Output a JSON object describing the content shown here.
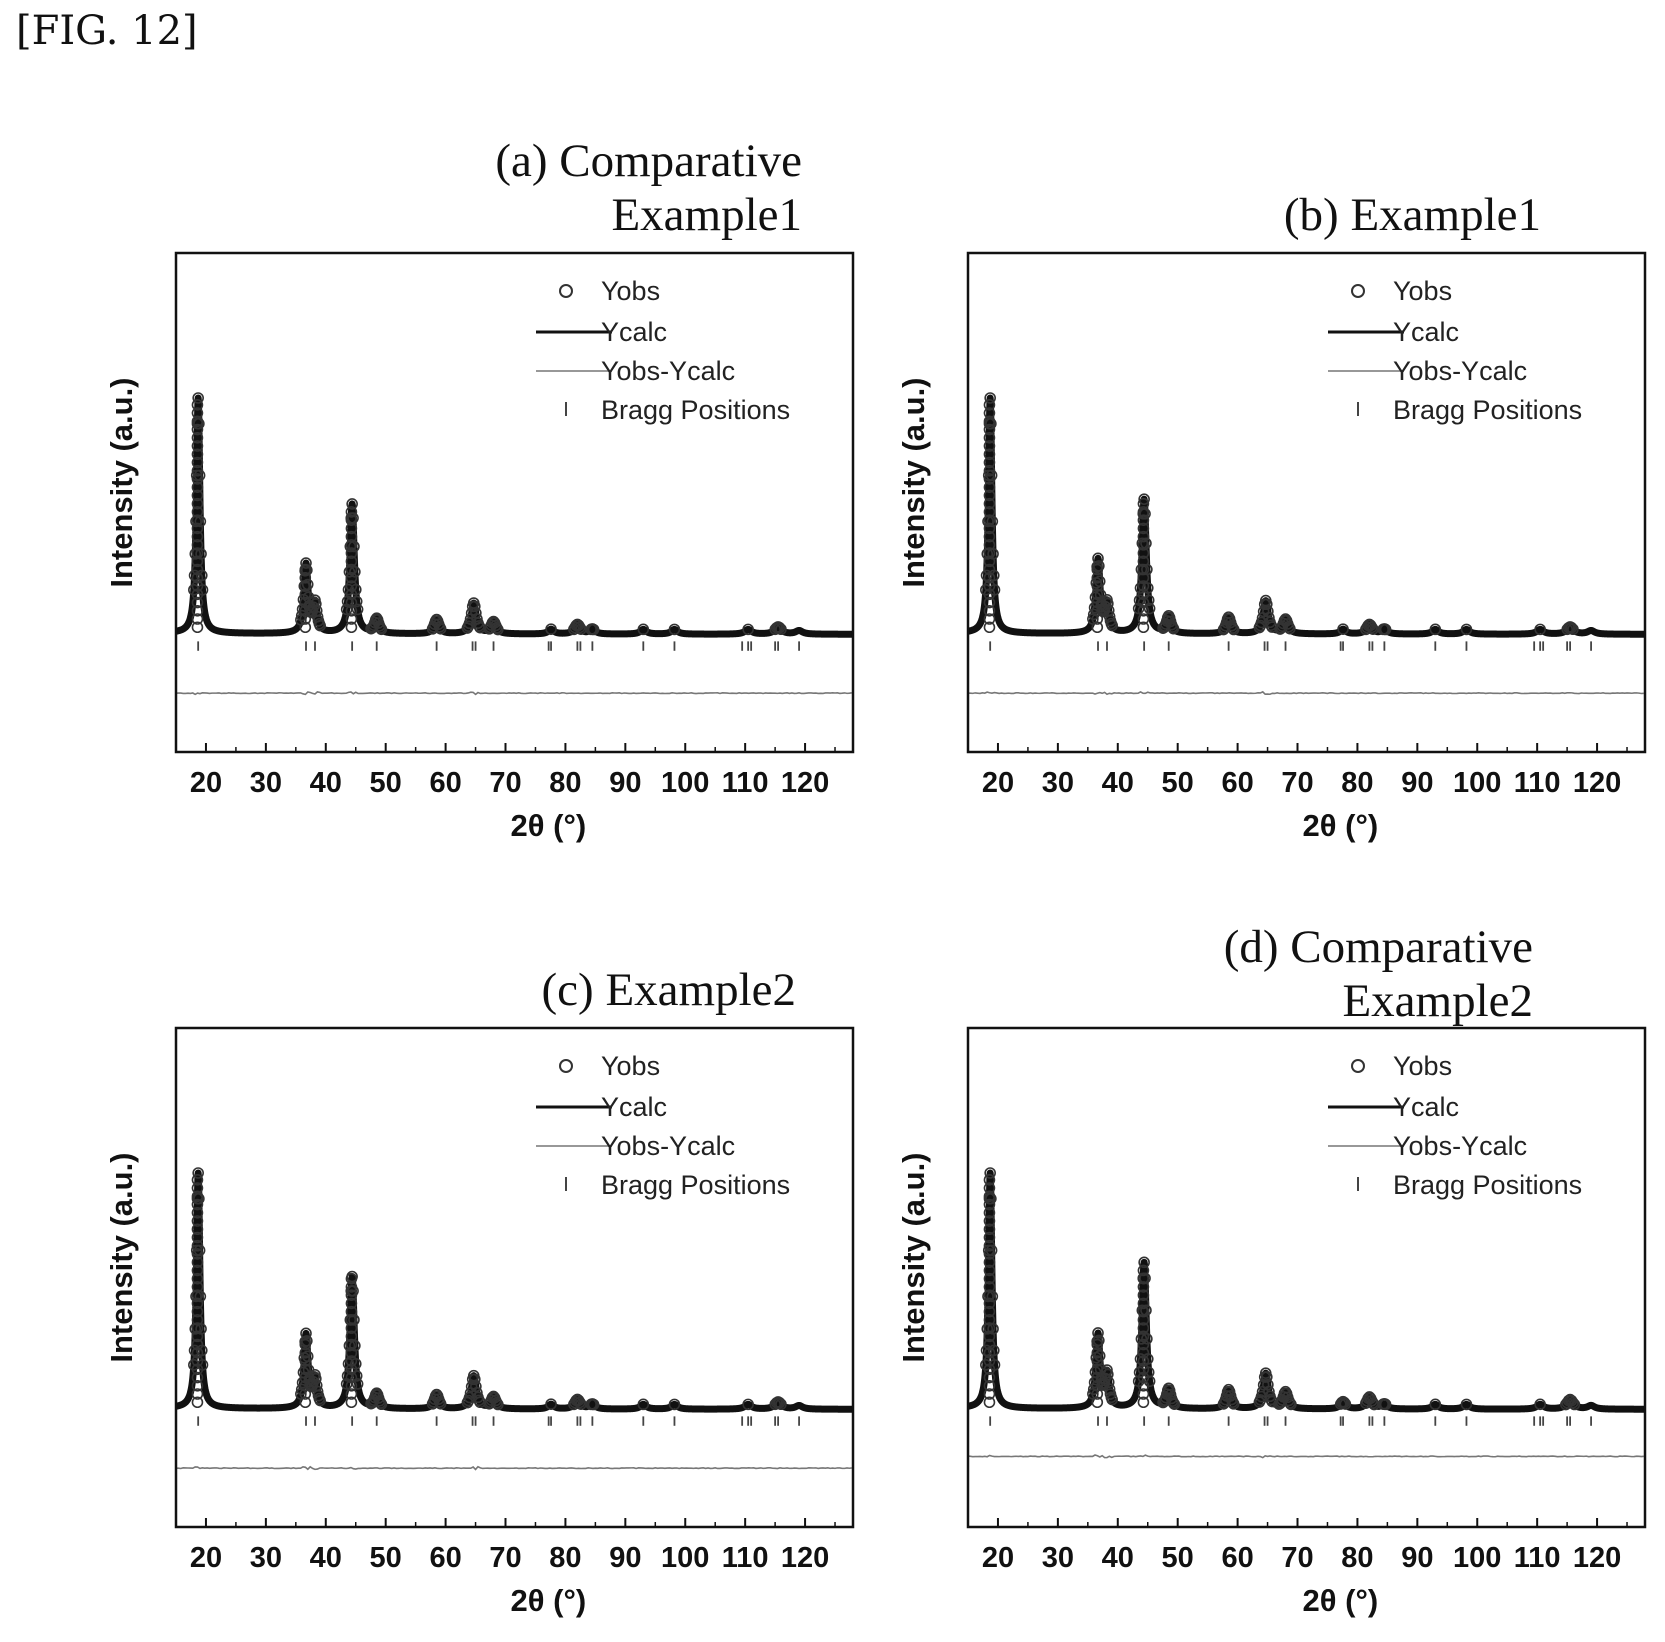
{
  "figure": {
    "label": "[FIG. 12]"
  },
  "legend": {
    "yobs": "Yobs",
    "ycalc": "Ycalc",
    "diff": "Yobs-Ycalc",
    "bragg": "Bragg Positions"
  },
  "colors": {
    "ink": "#111111",
    "yobs_marker": "#333333",
    "difference": "#777777",
    "bragg": "#444444"
  },
  "chart_data": [
    {
      "type": "line",
      "panel": "a",
      "title": "(a) Comparative\nExample1",
      "xlabel": "2θ (°)",
      "ylabel": "Intensity (a.u.)",
      "xlim": [
        15,
        128
      ],
      "xticks": [
        20,
        30,
        40,
        50,
        60,
        70,
        80,
        90,
        100,
        110,
        120
      ],
      "xtick_labels": [
        "20",
        "30",
        "40",
        "50",
        "60",
        "70",
        "80",
        "90",
        "100",
        "110",
        "120"
      ],
      "ylim": [
        -0.5,
        1.62
      ],
      "grid": false,
      "legend_position": "top-right",
      "peaks": [
        {
          "two_theta": 18.7,
          "intensity": 1.0
        },
        {
          "two_theta": 36.7,
          "intensity": 0.29
        },
        {
          "two_theta": 38.2,
          "intensity": 0.12
        },
        {
          "two_theta": 44.4,
          "intensity": 0.55
        },
        {
          "two_theta": 48.5,
          "intensity": 0.06
        },
        {
          "two_theta": 58.5,
          "intensity": 0.06
        },
        {
          "two_theta": 64.7,
          "intensity": 0.13
        },
        {
          "two_theta": 68.0,
          "intensity": 0.05
        },
        {
          "two_theta": 77.6,
          "intensity": 0.02
        },
        {
          "two_theta": 82.0,
          "intensity": 0.04
        },
        {
          "two_theta": 84.5,
          "intensity": 0.02
        },
        {
          "two_theta": 93.0,
          "intensity": 0.02
        },
        {
          "two_theta": 98.2,
          "intensity": 0.02
        },
        {
          "two_theta": 110.5,
          "intensity": 0.02
        },
        {
          "two_theta": 115.5,
          "intensity": 0.03
        },
        {
          "two_theta": 119.0,
          "intensity": 0.015
        }
      ],
      "bragg_positions": [
        18.7,
        36.7,
        38.2,
        44.4,
        48.5,
        58.5,
        64.5,
        65.0,
        68.0,
        77.2,
        77.6,
        82.0,
        82.5,
        84.5,
        93.0,
        98.2,
        109.5,
        110.5,
        111.0,
        115.0,
        115.5,
        119.0
      ],
      "difference_offset": -0.25
    },
    {
      "type": "line",
      "panel": "b",
      "title": "(b) Example1",
      "xlabel": "2θ (°)",
      "ylabel": "Intensity (a.u.)",
      "xlim": [
        15,
        128
      ],
      "xticks": [
        20,
        30,
        40,
        50,
        60,
        70,
        80,
        90,
        100,
        110,
        120
      ],
      "xtick_labels": [
        "20",
        "30",
        "40",
        "50",
        "60",
        "70",
        "80",
        "90",
        "100",
        "110",
        "120"
      ],
      "ylim": [
        -0.5,
        1.62
      ],
      "grid": false,
      "legend_position": "top-right",
      "peaks": [
        {
          "two_theta": 18.7,
          "intensity": 1.0
        },
        {
          "two_theta": 36.7,
          "intensity": 0.31
        },
        {
          "two_theta": 38.2,
          "intensity": 0.12
        },
        {
          "two_theta": 44.4,
          "intensity": 0.57
        },
        {
          "two_theta": 48.5,
          "intensity": 0.07
        },
        {
          "two_theta": 58.5,
          "intensity": 0.07
        },
        {
          "two_theta": 64.7,
          "intensity": 0.14
        },
        {
          "two_theta": 68.0,
          "intensity": 0.06
        },
        {
          "two_theta": 77.6,
          "intensity": 0.02
        },
        {
          "two_theta": 82.0,
          "intensity": 0.04
        },
        {
          "two_theta": 84.5,
          "intensity": 0.02
        },
        {
          "two_theta": 93.0,
          "intensity": 0.02
        },
        {
          "two_theta": 98.2,
          "intensity": 0.02
        },
        {
          "two_theta": 110.5,
          "intensity": 0.02
        },
        {
          "two_theta": 115.5,
          "intensity": 0.03
        },
        {
          "two_theta": 119.0,
          "intensity": 0.015
        }
      ],
      "bragg_positions": [
        18.7,
        36.7,
        38.2,
        44.4,
        48.5,
        58.5,
        64.5,
        65.0,
        68.0,
        77.2,
        77.6,
        82.0,
        82.5,
        84.5,
        93.0,
        98.2,
        109.5,
        110.5,
        111.0,
        115.0,
        115.5,
        119.0
      ],
      "difference_offset": -0.25
    },
    {
      "type": "line",
      "panel": "c",
      "title": "(c) Example2",
      "xlabel": "2θ (°)",
      "ylabel": "Intensity (a.u.)",
      "xlim": [
        15,
        128
      ],
      "xticks": [
        20,
        30,
        40,
        50,
        60,
        70,
        80,
        90,
        100,
        110,
        120
      ],
      "xtick_labels": [
        "20",
        "30",
        "40",
        "50",
        "60",
        "70",
        "80",
        "90",
        "100",
        "110",
        "120"
      ],
      "ylim": [
        -0.5,
        1.62
      ],
      "grid": false,
      "legend_position": "top-right",
      "peaks": [
        {
          "two_theta": 18.7,
          "intensity": 1.0
        },
        {
          "two_theta": 36.7,
          "intensity": 0.31
        },
        {
          "two_theta": 38.2,
          "intensity": 0.12
        },
        {
          "two_theta": 44.4,
          "intensity": 0.56
        },
        {
          "two_theta": 48.5,
          "intensity": 0.06
        },
        {
          "two_theta": 58.5,
          "intensity": 0.06
        },
        {
          "two_theta": 64.7,
          "intensity": 0.14
        },
        {
          "two_theta": 68.0,
          "intensity": 0.05
        },
        {
          "two_theta": 77.6,
          "intensity": 0.02
        },
        {
          "two_theta": 82.0,
          "intensity": 0.04
        },
        {
          "two_theta": 84.5,
          "intensity": 0.02
        },
        {
          "two_theta": 93.0,
          "intensity": 0.02
        },
        {
          "two_theta": 98.2,
          "intensity": 0.02
        },
        {
          "two_theta": 110.5,
          "intensity": 0.02
        },
        {
          "two_theta": 115.5,
          "intensity": 0.03
        },
        {
          "two_theta": 119.0,
          "intensity": 0.015
        }
      ],
      "bragg_positions": [
        18.7,
        36.7,
        38.2,
        44.4,
        48.5,
        58.5,
        64.5,
        65.0,
        68.0,
        77.2,
        77.6,
        82.0,
        82.5,
        84.5,
        93.0,
        98.2,
        109.5,
        110.5,
        111.0,
        115.0,
        115.5,
        119.0
      ],
      "difference_offset": -0.25
    },
    {
      "type": "line",
      "panel": "d",
      "title": "(d) Comparative\nExample2",
      "xlabel": "2θ (°)",
      "ylabel": "Intensity (a.u.)",
      "xlim": [
        15,
        128
      ],
      "xticks": [
        20,
        30,
        40,
        50,
        60,
        70,
        80,
        90,
        100,
        110,
        120
      ],
      "xtick_labels": [
        "20",
        "30",
        "40",
        "50",
        "60",
        "70",
        "80",
        "90",
        "100",
        "110",
        "120"
      ],
      "ylim": [
        -0.5,
        1.62
      ],
      "grid": false,
      "legend_position": "top-right",
      "peaks": [
        {
          "two_theta": 18.7,
          "intensity": 1.0
        },
        {
          "two_theta": 36.7,
          "intensity": 0.31
        },
        {
          "two_theta": 38.2,
          "intensity": 0.14
        },
        {
          "two_theta": 44.4,
          "intensity": 0.62
        },
        {
          "two_theta": 48.5,
          "intensity": 0.08
        },
        {
          "two_theta": 58.5,
          "intensity": 0.08
        },
        {
          "two_theta": 64.7,
          "intensity": 0.15
        },
        {
          "two_theta": 68.0,
          "intensity": 0.07
        },
        {
          "two_theta": 77.6,
          "intensity": 0.03
        },
        {
          "two_theta": 82.0,
          "intensity": 0.05
        },
        {
          "two_theta": 84.5,
          "intensity": 0.02
        },
        {
          "two_theta": 93.0,
          "intensity": 0.02
        },
        {
          "two_theta": 98.2,
          "intensity": 0.02
        },
        {
          "two_theta": 110.5,
          "intensity": 0.02
        },
        {
          "two_theta": 115.5,
          "intensity": 0.04
        },
        {
          "two_theta": 119.0,
          "intensity": 0.015
        }
      ],
      "bragg_positions": [
        18.7,
        36.7,
        38.2,
        44.4,
        48.5,
        58.5,
        64.5,
        65.0,
        68.0,
        77.2,
        77.6,
        82.0,
        82.5,
        84.5,
        93.0,
        98.2,
        109.5,
        110.5,
        111.0,
        115.0,
        115.5,
        119.0
      ],
      "difference_offset": -0.2
    }
  ]
}
